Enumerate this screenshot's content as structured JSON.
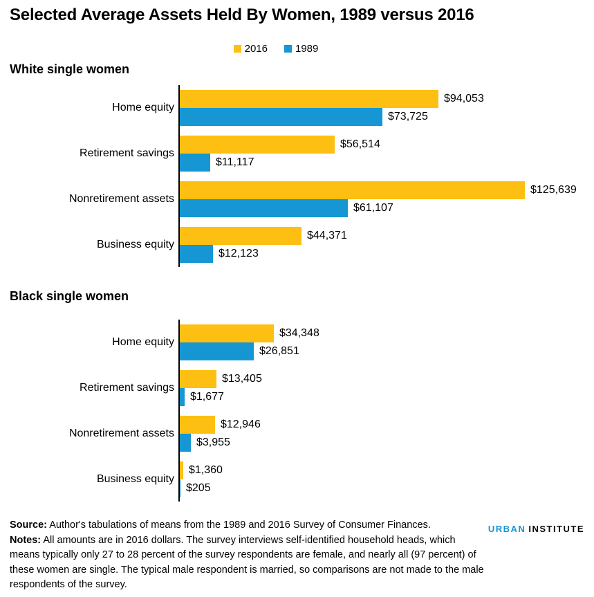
{
  "title": "Selected Average Assets Held By Women, 1989 versus 2016",
  "legend": {
    "items": [
      {
        "label": "2016",
        "color": "#fdbf11"
      },
      {
        "label": "1989",
        "color": "#1696d2"
      }
    ]
  },
  "chart_data": [
    {
      "type": "bar",
      "orientation": "horizontal",
      "section_title": "White single women",
      "categories": [
        "Home equity",
        "Retirement savings",
        "Nonretirement assets",
        "Business equity"
      ],
      "series": [
        {
          "name": "2016",
          "color": "#fdbf11",
          "values": [
            94053,
            56514,
            125639,
            44371
          ],
          "labels": [
            "$94,053",
            "$56,514",
            "$125,639",
            "$44,371"
          ]
        },
        {
          "name": "1989",
          "color": "#1696d2",
          "values": [
            73725,
            11117,
            61107,
            12123
          ],
          "labels": [
            "$73,725",
            "$11,117",
            "$61,107",
            "$12,123"
          ]
        }
      ],
      "xlim": [
        0,
        125639
      ],
      "grid": false,
      "legend_position": "top-center"
    },
    {
      "type": "bar",
      "orientation": "horizontal",
      "section_title": "Black single women",
      "categories": [
        "Home equity",
        "Retirement savings",
        "Nonretirement assets",
        "Business equity"
      ],
      "series": [
        {
          "name": "2016",
          "color": "#fdbf11",
          "values": [
            34348,
            13405,
            12946,
            1360
          ],
          "labels": [
            "$34,348",
            "$13,405",
            "$12,946",
            "$1,360"
          ]
        },
        {
          "name": "1989",
          "color": "#1696d2",
          "values": [
            26851,
            1677,
            3955,
            205
          ],
          "labels": [
            "$26,851",
            "$1,677",
            "$3,955",
            "$205"
          ]
        }
      ],
      "xlim": [
        0,
        125639
      ],
      "grid": false,
      "legend_position": "none"
    }
  ],
  "footer": {
    "source_label": "Source:",
    "source_text": " Author's tabulations of means from the 1989 and 2016 Survey of Consumer Finances.",
    "notes_label": "Notes:",
    "notes_text": " All amounts are in 2016 dollars. The survey interviews self-identified household heads, which means typically only 27 to 28 percent of the survey respondents are female, and nearly all (97 percent) of these women are single. The typical male respondent is married, so comparisons are not made to the male respondents of the survey."
  },
  "logo": {
    "part1": "URBAN",
    "part2": "INSTITUTE",
    "part1_color": "#1696d2",
    "part2_color": "#0a0a0a"
  }
}
